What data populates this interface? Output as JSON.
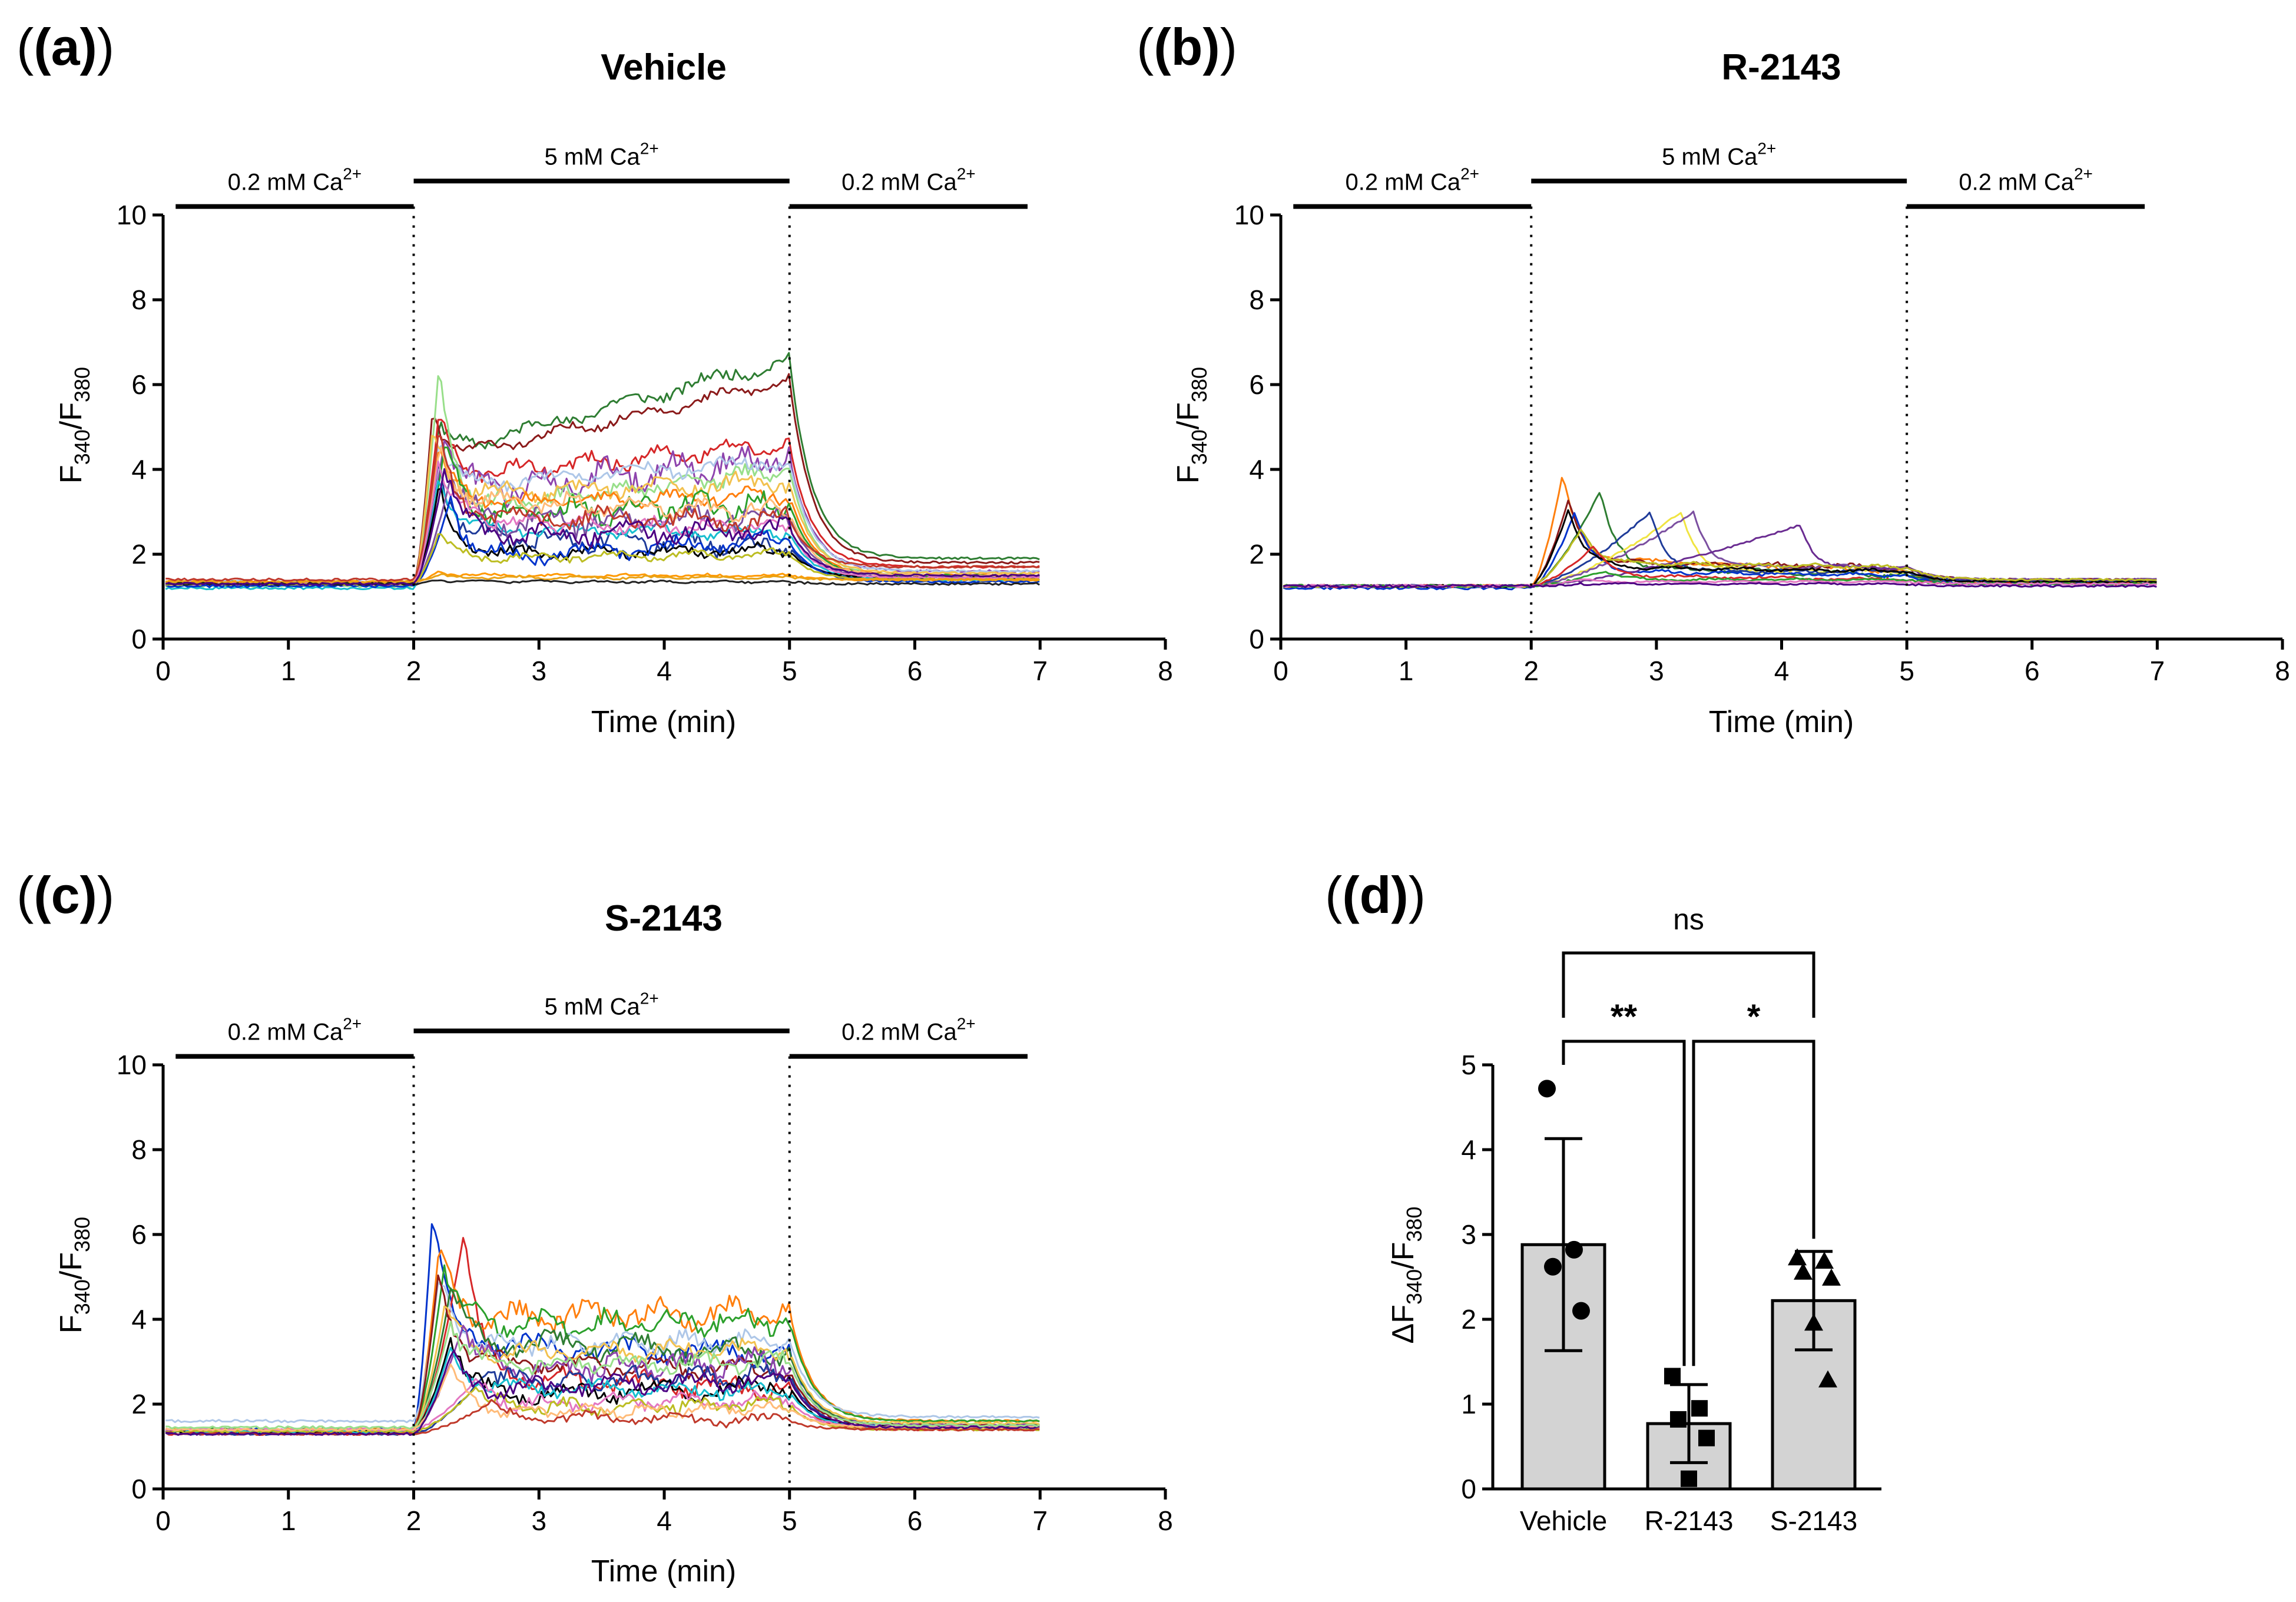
{
  "chart_data": [
    {
      "panel": "(a)",
      "type": "line",
      "title": "Vehicle",
      "xlabel": "Time (min)",
      "ylabel": "F340/F380",
      "xlim": [
        0,
        8
      ],
      "ylim": [
        0,
        10
      ],
      "xticks": [
        "0",
        "1",
        "2",
        "3",
        "4",
        "5",
        "6",
        "7",
        "8"
      ],
      "yticks": [
        "0",
        "2",
        "4",
        "6",
        "8",
        "10"
      ],
      "conditions": [
        {
          "label": "0.2 mM Ca",
          "sup": "2+",
          "from": 0.1,
          "to": 2.0,
          "level": 10.2
        },
        {
          "label": "5 mM Ca",
          "sup": "2+",
          "from": 2.0,
          "to": 5.0,
          "level": 10.8
        },
        {
          "label": "0.2 mM Ca",
          "sup": "2+",
          "from": 5.0,
          "to": 6.9,
          "level": 10.2
        }
      ],
      "markers_x": [
        2,
        5
      ],
      "seed": 11,
      "traces": [
        {
          "color": "#2e7d32",
          "baseline": 1.35,
          "peak_t": 2.2,
          "peak": 5.0,
          "plateau": [
            4.4,
            6.6
          ],
          "post": 1.9,
          "osc": 0.25
        },
        {
          "color": "#8b1a1a",
          "baseline": 1.3,
          "peak_t": 2.15,
          "peak": 5.4,
          "plateau": [
            4.2,
            6.1
          ],
          "post": 1.8,
          "osc": 0.2
        },
        {
          "color": "#d62728",
          "baseline": 1.35,
          "peak_t": 2.2,
          "peak": 5.3,
          "plateau": [
            3.8,
            4.6
          ],
          "post": 1.7,
          "osc": 0.3
        },
        {
          "color": "#8e44ad",
          "baseline": 1.3,
          "peak_t": 2.25,
          "peak": 4.8,
          "plateau": [
            3.4,
            4.3
          ],
          "post": 1.6,
          "osc": 0.5
        },
        {
          "color": "#98df8a",
          "baseline": 1.25,
          "peak_t": 2.2,
          "peak": 6.4,
          "plateau": [
            3.0,
            4.0
          ],
          "post": 1.5,
          "osc": 0.3
        },
        {
          "color": "#aec7e8",
          "baseline": 1.35,
          "peak_t": 2.2,
          "peak": 4.6,
          "plateau": [
            3.6,
            4.2
          ],
          "post": 1.6,
          "osc": 0.25
        },
        {
          "color": "#f2c14e",
          "baseline": 1.3,
          "peak_t": 2.15,
          "peak": 5.0,
          "plateau": [
            3.4,
            3.7
          ],
          "post": 1.55,
          "osc": 0.3
        },
        {
          "color": "#ff7f0e",
          "baseline": 1.3,
          "peak_t": 2.2,
          "peak": 4.5,
          "plateau": [
            3.2,
            3.4
          ],
          "post": 1.5,
          "osc": 0.25
        },
        {
          "color": "#1f3b99",
          "baseline": 1.3,
          "peak_t": 2.2,
          "peak": 4.2,
          "plateau": [
            2.4,
            2.2
          ],
          "post": 1.4,
          "osc": 0.35
        },
        {
          "color": "#2ca02c",
          "baseline": 1.3,
          "peak_t": 2.25,
          "peak": 4.6,
          "plateau": [
            2.9,
            3.2
          ],
          "post": 1.5,
          "osc": 0.4
        },
        {
          "color": "#17becf",
          "baseline": 1.2,
          "peak_t": 2.2,
          "peak": 3.8,
          "plateau": [
            2.6,
            2.5
          ],
          "post": 1.4,
          "osc": 0.2
        },
        {
          "color": "#000000",
          "baseline": 1.3,
          "peak_t": 2.2,
          "peak": 3.6,
          "plateau": [
            2.0,
            2.1
          ],
          "post": 1.45,
          "osc": 0.2
        },
        {
          "color": "#7b4fa0",
          "baseline": 1.3,
          "peak_t": 2.3,
          "peak": 3.9,
          "plateau": [
            2.7,
            2.9
          ],
          "post": 1.45,
          "osc": 0.45
        },
        {
          "color": "#ffbb78",
          "baseline": 1.3,
          "peak_t": 2.2,
          "peak": 4.4,
          "plateau": [
            3.3,
            3.0
          ],
          "post": 1.5,
          "osc": 0.3
        },
        {
          "color": "#e377c2",
          "baseline": 1.3,
          "peak_t": 2.2,
          "peak": 4.3,
          "plateau": [
            2.8,
            2.6
          ],
          "post": 1.45,
          "osc": 0.25
        },
        {
          "color": "#0033cc",
          "baseline": 1.25,
          "peak_t": 2.3,
          "peak": 3.4,
          "plateau": [
            1.9,
            2.3
          ],
          "post": 1.35,
          "osc": 0.3
        },
        {
          "color": "#bcbd22",
          "baseline": 1.3,
          "peak_t": 2.2,
          "peak": 2.5,
          "plateau": [
            1.9,
            2.0
          ],
          "post": 1.4,
          "osc": 0.15
        },
        {
          "color": "#ff9900",
          "baseline": 1.35,
          "peak_t": 2.2,
          "peak": 1.6,
          "plateau": [
            1.5,
            1.5
          ],
          "post": 1.4,
          "osc": 0.05
        },
        {
          "color": "#e8a317",
          "baseline": 1.35,
          "peak_t": 2.2,
          "peak": 1.5,
          "plateau": [
            1.45,
            1.45
          ],
          "post": 1.4,
          "osc": 0.05
        },
        {
          "color": "#222222",
          "baseline": 1.3,
          "peak_t": 2.2,
          "peak": 1.4,
          "plateau": [
            1.35,
            1.35
          ],
          "post": 1.3,
          "osc": 0.04
        },
        {
          "color": "#c0392b",
          "baseline": 1.4,
          "peak_t": 2.2,
          "peak": 4.9,
          "plateau": [
            2.9,
            2.8
          ],
          "post": 1.7,
          "osc": 0.35
        },
        {
          "color": "#4b0082",
          "baseline": 1.3,
          "peak_t": 2.25,
          "peak": 4.1,
          "plateau": [
            2.4,
            2.6
          ],
          "post": 1.5,
          "osc": 0.35
        }
      ]
    },
    {
      "panel": "(b)",
      "type": "line",
      "title": "R-2143",
      "xlabel": "Time (min)",
      "ylabel": "F340/F380",
      "xlim": [
        0,
        8
      ],
      "ylim": [
        0,
        10
      ],
      "xticks": [
        "0",
        "1",
        "2",
        "3",
        "4",
        "5",
        "6",
        "7",
        "8"
      ],
      "yticks": [
        "0",
        "2",
        "4",
        "6",
        "8",
        "10"
      ],
      "conditions": [
        {
          "label": "0.2 mM Ca",
          "sup": "2+",
          "from": 0.1,
          "to": 2.0,
          "level": 10.2
        },
        {
          "label": "5 mM Ca",
          "sup": "2+",
          "from": 2.0,
          "to": 5.0,
          "level": 10.8
        },
        {
          "label": "0.2 mM Ca",
          "sup": "2+",
          "from": 5.0,
          "to": 6.9,
          "level": 10.2
        }
      ],
      "markers_x": [
        2,
        5
      ],
      "seed": 23,
      "traces": [
        {
          "color": "#ff7f0e",
          "baseline": 1.25,
          "peak_t": 2.25,
          "peak": 3.9,
          "plateau": [
            1.9,
            1.6
          ],
          "post": 1.35,
          "osc": 0.08
        },
        {
          "color": "#2e7d32",
          "baseline": 1.25,
          "peak_t": 2.55,
          "peak": 3.5,
          "plateau": [
            1.7,
            1.5
          ],
          "post": 1.35,
          "osc": 0.08
        },
        {
          "color": "#8b1a1a",
          "baseline": 1.25,
          "peak_t": 2.3,
          "peak": 3.3,
          "plateau": [
            1.8,
            1.7
          ],
          "post": 1.4,
          "osc": 0.08
        },
        {
          "color": "#0033cc",
          "baseline": 1.2,
          "peak_t": 2.35,
          "peak": 3.0,
          "plateau": [
            1.6,
            1.5
          ],
          "post": 1.3,
          "osc": 0.06
        },
        {
          "color": "#f0e442",
          "baseline": 1.25,
          "peak_t": 3.2,
          "peak": 3.0,
          "plateau": [
            1.6,
            1.6
          ],
          "post": 1.35,
          "osc": 0.06
        },
        {
          "color": "#7b4fa0",
          "baseline": 1.25,
          "peak_t": 3.3,
          "peak": 3.0,
          "plateau": [
            1.7,
            1.7
          ],
          "post": 1.4,
          "osc": 0.06
        },
        {
          "color": "#6a2c91",
          "baseline": 1.25,
          "peak_t": 4.15,
          "peak": 2.7,
          "plateau": [
            1.6,
            1.7
          ],
          "post": 1.4,
          "osc": 0.06
        },
        {
          "color": "#1f3b99",
          "baseline": 1.25,
          "peak_t": 2.95,
          "peak": 3.0,
          "plateau": [
            1.6,
            1.6
          ],
          "post": 1.35,
          "osc": 0.06
        },
        {
          "color": "#000000",
          "baseline": 1.25,
          "peak_t": 2.3,
          "peak": 3.1,
          "plateau": [
            1.7,
            1.6
          ],
          "post": 1.35,
          "osc": 0.06
        },
        {
          "color": "#bcbd22",
          "baseline": 1.25,
          "peak_t": 2.4,
          "peak": 2.6,
          "plateau": [
            1.8,
            1.7
          ],
          "post": 1.4,
          "osc": 0.06
        },
        {
          "color": "#d62728",
          "baseline": 1.25,
          "peak_t": 2.5,
          "peak": 2.2,
          "plateau": [
            1.5,
            1.4
          ],
          "post": 1.3,
          "osc": 0.05
        },
        {
          "color": "#2ca02c",
          "baseline": 1.25,
          "peak_t": 2.6,
          "peak": 1.6,
          "plateau": [
            1.4,
            1.4
          ],
          "post": 1.3,
          "osc": 0.04
        },
        {
          "color": "#e377c2",
          "baseline": 1.25,
          "peak_t": 2.4,
          "peak": 1.4,
          "plateau": [
            1.35,
            1.35
          ],
          "post": 1.3,
          "osc": 0.03
        },
        {
          "color": "#4b0082",
          "baseline": 1.25,
          "peak_t": 2.4,
          "peak": 1.3,
          "plateau": [
            1.3,
            1.3
          ],
          "post": 1.25,
          "osc": 0.03
        }
      ]
    },
    {
      "panel": "(c)",
      "type": "line",
      "title": "S-2143",
      "xlabel": "Time (min)",
      "ylabel": "F340/F380",
      "xlim": [
        0,
        8
      ],
      "ylim": [
        0,
        10
      ],
      "xticks": [
        "0",
        "1",
        "2",
        "3",
        "4",
        "5",
        "6",
        "7",
        "8"
      ],
      "yticks": [
        "0",
        "2",
        "4",
        "6",
        "8",
        "10"
      ],
      "conditions": [
        {
          "label": "0.2 mM Ca",
          "sup": "2+",
          "from": 0.1,
          "to": 2.0,
          "level": 10.2
        },
        {
          "label": "5 mM Ca",
          "sup": "2+",
          "from": 2.0,
          "to": 5.0,
          "level": 10.8
        },
        {
          "label": "0.2 mM Ca",
          "sup": "2+",
          "from": 5.0,
          "to": 6.9,
          "level": 10.2
        }
      ],
      "markers_x": [
        2,
        5
      ],
      "seed": 37,
      "traces": [
        {
          "color": "#0033cc",
          "baseline": 1.4,
          "peak_t": 2.15,
          "peak": 6.5,
          "plateau": [
            3.4,
            3.2
          ],
          "post": 1.5,
          "osc": 0.35
        },
        {
          "color": "#d62728",
          "baseline": 1.3,
          "peak_t": 2.4,
          "peak": 6.0,
          "plateau": [
            2.6,
            2.4
          ],
          "post": 1.4,
          "osc": 0.35
        },
        {
          "color": "#ff7f0e",
          "baseline": 1.4,
          "peak_t": 2.2,
          "peak": 5.6,
          "plateau": [
            4.0,
            4.2
          ],
          "post": 1.6,
          "osc": 0.45
        },
        {
          "color": "#2ca02c",
          "baseline": 1.4,
          "peak_t": 2.25,
          "peak": 5.4,
          "plateau": [
            3.8,
            4.0
          ],
          "post": 1.6,
          "osc": 0.4
        },
        {
          "color": "#aec7e8",
          "baseline": 1.6,
          "peak_t": 2.2,
          "peak": 5.0,
          "plateau": [
            3.4,
            3.5
          ],
          "post": 1.7,
          "osc": 0.3
        },
        {
          "color": "#2e7d32",
          "baseline": 1.35,
          "peak_t": 2.3,
          "peak": 4.8,
          "plateau": [
            3.5,
            3.2
          ],
          "post": 1.5,
          "osc": 0.4
        },
        {
          "color": "#8b1a1a",
          "baseline": 1.35,
          "peak_t": 2.2,
          "peak": 5.2,
          "plateau": [
            3.0,
            2.8
          ],
          "post": 1.5,
          "osc": 0.3
        },
        {
          "color": "#f2c14e",
          "baseline": 1.4,
          "peak_t": 2.25,
          "peak": 4.4,
          "plateau": [
            3.2,
            3.3
          ],
          "post": 1.55,
          "osc": 0.3
        },
        {
          "color": "#8e44ad",
          "baseline": 1.35,
          "peak_t": 2.4,
          "peak": 3.9,
          "plateau": [
            2.8,
            3.0
          ],
          "post": 1.5,
          "osc": 0.4
        },
        {
          "color": "#1f3b99",
          "baseline": 1.3,
          "peak_t": 2.6,
          "peak": 2.8,
          "plateau": [
            2.5,
            2.7
          ],
          "post": 1.45,
          "osc": 0.35
        },
        {
          "color": "#000000",
          "baseline": 1.35,
          "peak_t": 2.3,
          "peak": 3.6,
          "plateau": [
            2.2,
            2.4
          ],
          "post": 1.45,
          "osc": 0.3
        },
        {
          "color": "#17becf",
          "baseline": 1.35,
          "peak_t": 2.3,
          "peak": 3.4,
          "plateau": [
            2.4,
            2.3
          ],
          "post": 1.45,
          "osc": 0.25
        },
        {
          "color": "#e377c2",
          "baseline": 1.4,
          "peak_t": 2.5,
          "peak": 2.6,
          "plateau": [
            2.0,
            2.1
          ],
          "post": 1.45,
          "osc": 0.25
        },
        {
          "color": "#bcbd22",
          "baseline": 1.35,
          "peak_t": 2.5,
          "peak": 2.4,
          "plateau": [
            1.9,
            2.0
          ],
          "post": 1.4,
          "osc": 0.25
        },
        {
          "color": "#ffbb78",
          "baseline": 1.4,
          "peak_t": 2.3,
          "peak": 3.0,
          "plateau": [
            1.8,
            1.9
          ],
          "post": 1.45,
          "osc": 0.2
        },
        {
          "color": "#c0392b",
          "baseline": 1.3,
          "peak_t": 2.6,
          "peak": 2.0,
          "plateau": [
            1.7,
            1.6
          ],
          "post": 1.4,
          "osc": 0.2
        },
        {
          "color": "#4b0082",
          "baseline": 1.3,
          "peak_t": 2.3,
          "peak": 3.2,
          "plateau": [
            2.3,
            2.6
          ],
          "post": 1.45,
          "osc": 0.3
        },
        {
          "color": "#98df8a",
          "baseline": 1.45,
          "peak_t": 2.3,
          "peak": 4.0,
          "plateau": [
            2.9,
            3.0
          ],
          "post": 1.5,
          "osc": 0.3
        }
      ]
    },
    {
      "panel": "(d)",
      "type": "bar",
      "title": "",
      "xlabel": "",
      "ylabel": "ΔF340/F380",
      "ylim": [
        0,
        5
      ],
      "yticks": [
        "0",
        "1",
        "2",
        "3",
        "4",
        "5"
      ],
      "categories": [
        "Vehicle",
        "R-2143",
        "S-2143"
      ],
      "bar_color": "#d3d3d3",
      "series": [
        {
          "name": "Vehicle",
          "mean": 2.88,
          "sd": 1.25,
          "marker": "circle",
          "points": [
            4.72,
            2.82,
            2.62,
            2.1
          ]
        },
        {
          "name": "R-2143",
          "mean": 0.77,
          "sd": 0.46,
          "marker": "square",
          "points": [
            1.33,
            0.95,
            0.82,
            0.6,
            0.12
          ]
        },
        {
          "name": "S-2143",
          "mean": 2.22,
          "sd": 0.58,
          "marker": "triangle",
          "points": [
            2.72,
            2.68,
            2.55,
            2.48,
            1.95,
            1.28
          ]
        }
      ],
      "significance": [
        {
          "from": "Vehicle",
          "to": "R-2143",
          "label": "**",
          "level": 5.1
        },
        {
          "from": "R-2143",
          "to": "S-2143",
          "label": "*",
          "level": 5.1
        },
        {
          "from": "Vehicle",
          "to": "S-2143",
          "label": "ns",
          "level": 6.3
        }
      ]
    }
  ]
}
